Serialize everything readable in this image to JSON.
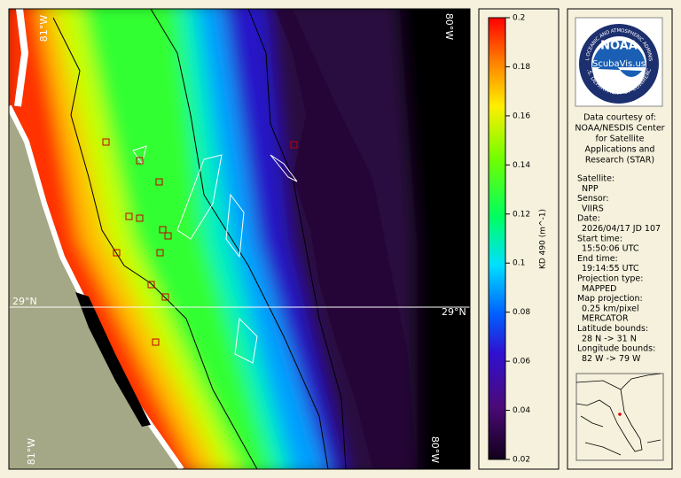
{
  "map": {
    "labels": {
      "top_left": "81°W",
      "top_right": "80°W",
      "left": "29°N",
      "right": "29°N",
      "bottom_left": "81°W",
      "bottom_right": "80°W"
    }
  },
  "colorbar": {
    "label": "KD 490 (m^-1)",
    "lim": [
      0.02,
      0.2
    ],
    "ticks": [
      0.02,
      0.04,
      0.06,
      0.08,
      0.1,
      0.12,
      0.14,
      0.16,
      0.18,
      0.2
    ]
  },
  "logo": {
    "name": "NOAA",
    "top_text": "NATIONAL OCEANIC AND ATMOSPHERIC ADMINISTRATION",
    "bottom_text": "U.S. DEPARTMENT OF COMMERCE",
    "watermark": "ScubaVis.us"
  },
  "credits": [
    "Data courtesy of:",
    "NOAA/NESDIS Center",
    "for Satellite",
    "Applications and",
    "Research (STAR)"
  ],
  "fields": [
    {
      "label": "Satellite:",
      "values": [
        "NPP"
      ]
    },
    {
      "label": "Sensor:",
      "values": [
        "VIIRS"
      ]
    },
    {
      "label": "Date:",
      "values": [
        "2026/04/17 JD 107"
      ]
    },
    {
      "label": "Start time:",
      "values": [
        "15:50:06 UTC"
      ]
    },
    {
      "label": "End time:",
      "values": [
        "19:14:55 UTC"
      ]
    },
    {
      "label": "Projection type:",
      "values": [
        "MAPPED"
      ]
    },
    {
      "label": "Map projection:",
      "values": [
        "0.25 km/pixel",
        "MERCATOR"
      ]
    },
    {
      "label": "Latitude bounds:",
      "values": [
        "28 N -> 31 N"
      ]
    },
    {
      "label": "Longitude bounds:",
      "values": [
        "82 W -> 79 W"
      ]
    }
  ]
}
